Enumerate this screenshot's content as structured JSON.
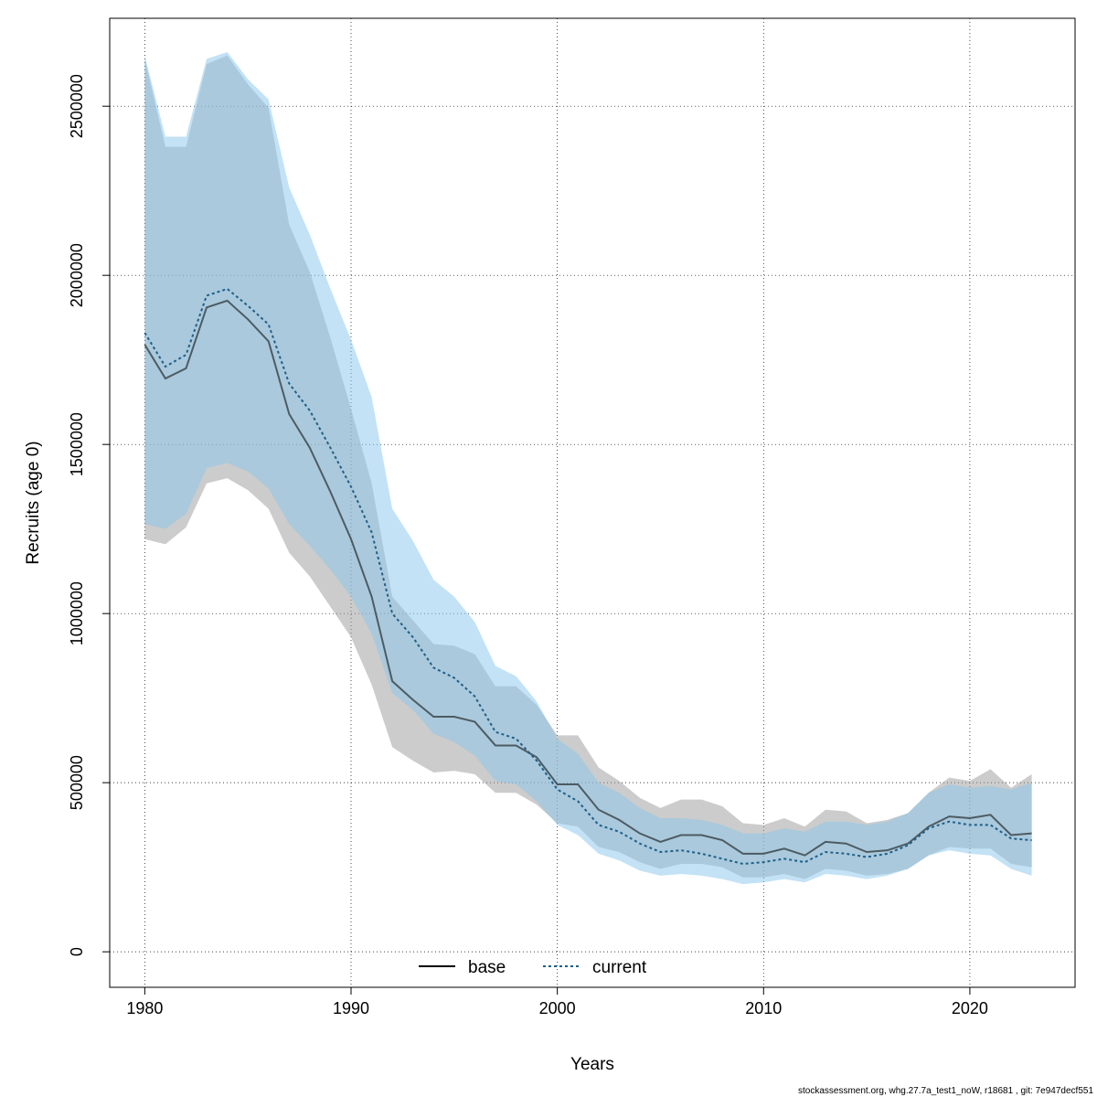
{
  "chart_data": {
    "type": "area",
    "xlabel": "Years",
    "ylabel": "Recruits (age 0)",
    "xlim": [
      1978.3,
      2025.1
    ],
    "ylim": [
      -105000,
      2760000
    ],
    "x_ticks": [
      1980,
      1990,
      2000,
      2010,
      2020
    ],
    "y_ticks": [
      0,
      500000,
      1000000,
      1500000,
      2000000,
      2500000
    ],
    "grid": true,
    "legend_position": "bottom-center",
    "x": [
      1980,
      1981,
      1982,
      1983,
      1984,
      1985,
      1986,
      1987,
      1988,
      1989,
      1990,
      1991,
      1992,
      1993,
      1994,
      1995,
      1996,
      1997,
      1998,
      1999,
      2000,
      2001,
      2002,
      2003,
      2004,
      2005,
      2006,
      2007,
      2008,
      2009,
      2010,
      2011,
      2012,
      2013,
      2014,
      2015,
      2016,
      2017,
      2018,
      2019,
      2020,
      2021,
      2022,
      2023
    ],
    "series": [
      {
        "name": "base",
        "line_style": "solid",
        "line_color": "#000000",
        "band_color": "#9a9a9a",
        "values": [
          1795000,
          1695000,
          1725000,
          1905000,
          1925000,
          1870000,
          1805000,
          1590000,
          1490000,
          1360000,
          1220000,
          1050000,
          800000,
          745000,
          695000,
          695000,
          680000,
          610000,
          610000,
          575000,
          495000,
          495000,
          420000,
          390000,
          350000,
          325000,
          345000,
          345000,
          330000,
          290000,
          290000,
          305000,
          285000,
          325000,
          320000,
          295000,
          300000,
          320000,
          370000,
          400000,
          395000,
          405000,
          345000,
          350000
        ],
        "lower": [
          1220000,
          1205000,
          1255000,
          1385000,
          1400000,
          1365000,
          1310000,
          1180000,
          1110000,
          1020000,
          930000,
          790000,
          605000,
          565000,
          530000,
          535000,
          525000,
          470000,
          470000,
          435000,
          380000,
          370000,
          310000,
          295000,
          265000,
          245000,
          260000,
          260000,
          250000,
          220000,
          220000,
          230000,
          215000,
          245000,
          240000,
          225000,
          230000,
          245000,
          285000,
          310000,
          305000,
          305000,
          260000,
          250000
        ],
        "upper": [
          2640000,
          2380000,
          2380000,
          2625000,
          2650000,
          2565000,
          2495000,
          2150000,
          2010000,
          1815000,
          1605000,
          1385000,
          1050000,
          980000,
          910000,
          905000,
          880000,
          785000,
          785000,
          730000,
          640000,
          640000,
          545000,
          505000,
          455000,
          425000,
          450000,
          450000,
          430000,
          380000,
          375000,
          395000,
          370000,
          420000,
          415000,
          380000,
          390000,
          410000,
          470000,
          515000,
          505000,
          540000,
          485000,
          525000
        ]
      },
      {
        "name": "current",
        "line_style": "dotted",
        "line_color": "#1f5f8a",
        "band_color": "#87c6eb",
        "values": [
          1830000,
          1730000,
          1765000,
          1940000,
          1960000,
          1910000,
          1855000,
          1680000,
          1600000,
          1490000,
          1375000,
          1240000,
          1000000,
          930000,
          840000,
          810000,
          755000,
          650000,
          630000,
          565000,
          480000,
          445000,
          375000,
          355000,
          320000,
          295000,
          300000,
          290000,
          275000,
          260000,
          265000,
          275000,
          265000,
          295000,
          290000,
          280000,
          290000,
          315000,
          365000,
          385000,
          375000,
          375000,
          335000,
          330000
        ],
        "lower": [
          1265000,
          1250000,
          1295000,
          1430000,
          1445000,
          1420000,
          1370000,
          1265000,
          1200000,
          1130000,
          1050000,
          940000,
          765000,
          715000,
          645000,
          620000,
          580000,
          505000,
          495000,
          445000,
          375000,
          345000,
          290000,
          270000,
          240000,
          225000,
          230000,
          225000,
          215000,
          200000,
          205000,
          215000,
          205000,
          230000,
          225000,
          215000,
          225000,
          245000,
          285000,
          300000,
          290000,
          285000,
          245000,
          225000
        ],
        "upper": [
          2650000,
          2410000,
          2410000,
          2640000,
          2660000,
          2580000,
          2520000,
          2260000,
          2120000,
          1960000,
          1810000,
          1640000,
          1310000,
          1215000,
          1100000,
          1050000,
          975000,
          845000,
          815000,
          740000,
          630000,
          585000,
          500000,
          470000,
          425000,
          395000,
          395000,
          390000,
          375000,
          350000,
          350000,
          365000,
          355000,
          385000,
          385000,
          375000,
          385000,
          410000,
          470000,
          495000,
          485000,
          490000,
          480000,
          500000
        ]
      }
    ]
  },
  "footer": "stockassessment.org, whg.27.7a_test1_noW, r18681 , git: 7e947decf551"
}
